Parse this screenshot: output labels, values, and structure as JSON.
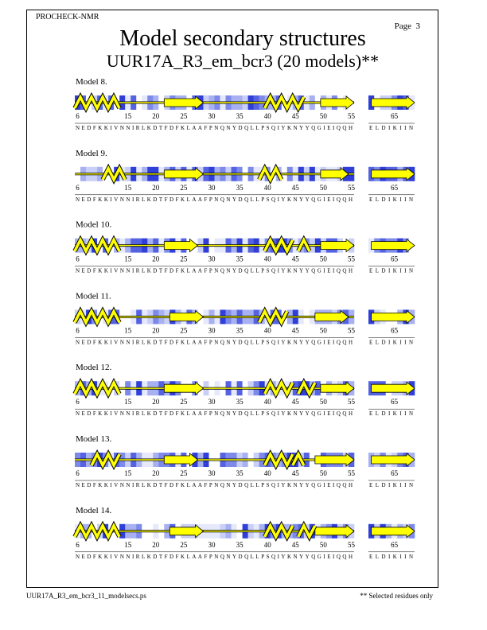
{
  "header": {
    "program": "PROCHECK-NMR",
    "page": "Page  3",
    "title": "Model secondary structures",
    "subtitle": "UUR17A_R3_em_bcr3 (20 models)**"
  },
  "residue_axis": {
    "ticks": [
      6,
      15,
      20,
      25,
      30,
      35,
      40,
      45,
      50,
      55
    ],
    "ticks_2": [
      65
    ],
    "sequence": "NEDFKKIVNNIRLKDTFDFKLAAFPNQNYDQLLPSQIYKNYYQGIEIQQH",
    "sequence_2": "ELDIKIIN"
  },
  "models": [
    {
      "label": "Model  8."
    },
    {
      "label": "Model  9."
    },
    {
      "label": "Model 10."
    },
    {
      "label": "Model 11."
    },
    {
      "label": "Model 12."
    },
    {
      "label": "Model 13."
    },
    {
      "label": "Model 14."
    }
  ],
  "footer": {
    "file": "UUR17A_R3_em_bcr3_11_modelsecs.ps",
    "note": "** Selected residues only"
  }
}
